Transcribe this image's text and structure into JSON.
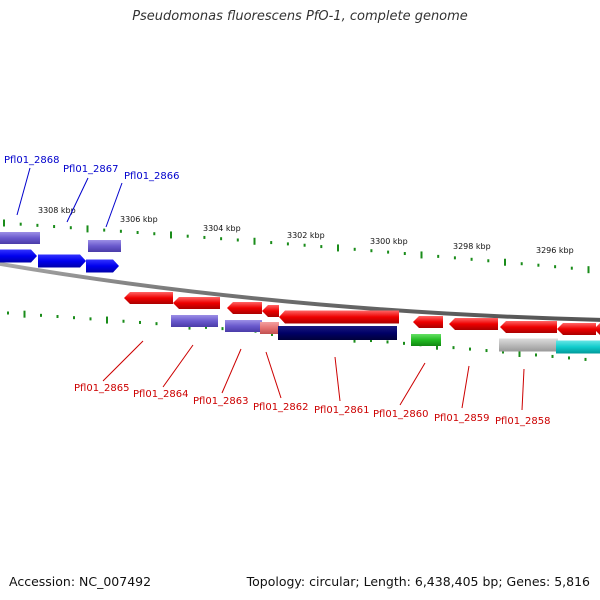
{
  "title": "Pseudomonas fluorescens PfO-1, complete genome",
  "footer": {
    "accession": "Accession: NC_007492",
    "summary": "Topology: circular; Length: 6,438,405 bp; Genes: 5,816"
  },
  "colors": {
    "forward_label": "#0000cc",
    "reverse_label": "#cc0000",
    "tick": "#1a8c1a",
    "backbone": "#808080"
  },
  "tick_labels": [
    "3308 kbp",
    "3306 kbp",
    "3304 kbp",
    "3302 kbp",
    "3300 kbp",
    "3298 kbp",
    "3296 kbp"
  ],
  "forward_genes": [
    "Pfl01_2868",
    "Pfl01_2867",
    "Pfl01_2866"
  ],
  "reverse_genes": [
    "Pfl01_2865",
    "Pfl01_2864",
    "Pfl01_2863",
    "Pfl01_2862",
    "Pfl01_2861",
    "Pfl01_2860",
    "Pfl01_2859",
    "Pfl01_2858"
  ]
}
